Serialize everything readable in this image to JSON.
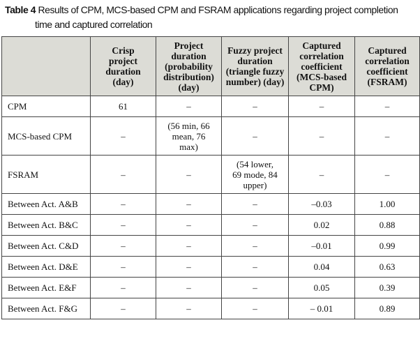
{
  "caption": {
    "label": "Table 4",
    "text": "Results of CPM, MCS-based CPM and FSRAM applications regarding project completion",
    "text2": "time and captured correlation"
  },
  "headers": [
    "",
    "Crisp project duration (day)",
    "Project duration (probability distribution) (day)",
    "Fuzzy project duration (triangle fuzzy number) (day)",
    "Captured correlation coefficient (MCS-based CPM)",
    "Captured correlation coefficient (FSRAM)"
  ],
  "rows": [
    [
      "CPM",
      "61",
      "–",
      "–",
      "–",
      "–"
    ],
    [
      "MCS-based CPM",
      "–",
      "(56 min, 66 mean, 76 max)",
      "–",
      "–",
      "–"
    ],
    [
      "FSRAM",
      "–",
      "–",
      "(54 lower, 69 mode, 84 upper)",
      "–",
      "–"
    ],
    [
      "Between Act. A&B",
      "–",
      "–",
      "–",
      "–0.03",
      "1.00"
    ],
    [
      "Between Act. B&C",
      "–",
      "–",
      "–",
      "0.02",
      "0.88"
    ],
    [
      "Between Act. C&D",
      "–",
      "–",
      "–",
      "–0.01",
      "0.99"
    ],
    [
      "Between Act. D&E",
      "–",
      "–",
      "–",
      "0.04",
      "0.63"
    ],
    [
      "Between Act. E&F",
      "–",
      "–",
      "–",
      "0.05",
      "0.39"
    ],
    [
      "Between Act. F&G",
      "–",
      "–",
      "–",
      "– 0.01",
      "0.89"
    ]
  ]
}
